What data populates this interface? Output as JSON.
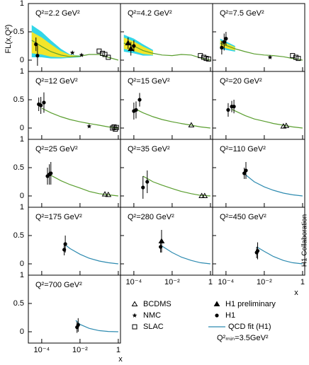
{
  "axes": {
    "ylabel": "FL(x,Q²)",
    "xlabel": "x",
    "xlim": [
      2e-05,
      1.3
    ],
    "ylim": [
      -0.2,
      1
    ],
    "log_x": true,
    "xticks": [
      {
        "value": 0.0001,
        "label": "10⁻⁴"
      },
      {
        "value": 0.01,
        "label": "10⁻²"
      },
      1
    ],
    "yticks": [
      0,
      0.5,
      1
    ]
  },
  "collaboration": "H1 Collaboration",
  "legend": {
    "entries": [
      {
        "name": "BCDMS",
        "marker": "open-triangle"
      },
      {
        "name": "NMC",
        "marker": "star"
      },
      {
        "name": "SLAC",
        "marker": "square"
      },
      {
        "name": "H1 preliminary",
        "marker": "triangle"
      },
      {
        "name": "H1",
        "marker": "circle"
      },
      {
        "name": "QCD fit (H1)",
        "marker": "line"
      }
    ],
    "fit_note": "Q²ₘᵢₙ=3.5GeV²"
  },
  "chart_data": [
    {
      "type": "scatter",
      "title": "Q²=2.2 GeV²",
      "bands": [
        {
          "color": "#33d6e8",
          "x": [
            3e-05,
            0.0001,
            0.0003,
            0.001,
            0.003,
            0.01
          ],
          "upper": [
            0.62,
            0.5,
            0.35,
            0.2,
            0.1,
            0.08
          ],
          "lower": [
            0.05,
            0.05,
            0.03,
            0.03,
            0.04,
            0.05
          ]
        },
        {
          "color": "#f2e52a",
          "x": [
            3e-05,
            0.0001,
            0.0003,
            0.001,
            0.003,
            0.01
          ],
          "upper": [
            0.5,
            0.4,
            0.28,
            0.16,
            0.09,
            0.075
          ],
          "lower": [
            0.12,
            0.1,
            0.06,
            0.05,
            0.05,
            0.06
          ]
        }
      ],
      "fit": {
        "color": "#5a9e2f",
        "x": [
          3e-05,
          0.0001,
          0.0003,
          0.001,
          0.003,
          0.01,
          0.03,
          0.1,
          0.3,
          1
        ],
        "values": [
          0.35,
          0.24,
          0.15,
          0.09,
          0.06,
          0.07,
          0.1,
          0.1,
          0.05,
          0
        ]
      },
      "series": [
        {
          "name": "H1",
          "marker": "circle",
          "x": [
            5e-05,
            6e-05
          ],
          "values": [
            0.28,
            0.08
          ],
          "errors": [
            0.12,
            0.18
          ]
        },
        {
          "name": "NMC",
          "marker": "star",
          "x": [
            0.004,
            0.012
          ],
          "values": [
            0.13,
            0.09
          ]
        },
        {
          "name": "SLAC",
          "marker": "square",
          "x": [
            0.1,
            0.15,
            0.2,
            0.3
          ],
          "values": [
            0.16,
            0.12,
            0.1,
            0.05
          ]
        }
      ]
    },
    {
      "type": "scatter",
      "title": "Q²=4.2 GeV²",
      "bands": [
        {
          "color": "#33d6e8",
          "x": [
            3e-05,
            0.0001,
            0.0003,
            0.001
          ],
          "upper": [
            0.45,
            0.38,
            0.28,
            0.18
          ],
          "lower": [
            0.15,
            0.12,
            0.08,
            0.08
          ]
        },
        {
          "color": "#f2e52a",
          "x": [
            3e-05,
            0.0001,
            0.0003,
            0.001
          ],
          "upper": [
            0.4,
            0.33,
            0.24,
            0.16
          ],
          "lower": [
            0.2,
            0.16,
            0.11,
            0.09
          ]
        }
      ],
      "fit": {
        "color": "#5a9e2f",
        "x": [
          3e-05,
          0.0001,
          0.0003,
          0.001,
          0.003,
          0.01,
          0.03,
          0.1,
          0.3,
          1
        ],
        "values": [
          0.3,
          0.25,
          0.17,
          0.12,
          0.09,
          0.08,
          0.1,
          0.09,
          0.04,
          0
        ]
      },
      "series": [
        {
          "name": "H1 preliminary",
          "marker": "triangle",
          "x": [
            5e-05,
            7e-05
          ],
          "values": [
            0.3,
            0.2
          ],
          "errors": [
            0.1,
            0.12
          ]
        },
        {
          "name": "H1",
          "marker": "circle",
          "x": [
            0.0001
          ],
          "values": [
            0.25
          ],
          "errors": [
            0.1
          ]
        },
        {
          "name": "SLAC",
          "marker": "square",
          "x": [
            0.3,
            0.45,
            0.6,
            0.8
          ],
          "values": [
            0.08,
            0.05,
            0.03,
            0.02
          ]
        }
      ]
    },
    {
      "type": "scatter",
      "title": "Q²=7.5 GeV²",
      "bands": [
        {
          "color": "#33d6e8",
          "x": [
            5e-05,
            0.0001,
            0.0003
          ],
          "upper": [
            0.38,
            0.33,
            0.25
          ],
          "lower": [
            0.2,
            0.18,
            0.15
          ]
        },
        {
          "color": "#f2e52a",
          "x": [
            5e-05,
            0.0001,
            0.0003
          ],
          "upper": [
            0.35,
            0.3,
            0.23
          ],
          "lower": [
            0.23,
            0.21,
            0.17
          ]
        }
      ],
      "fit": {
        "color": "#5a9e2f",
        "x": [
          5e-05,
          0.0001,
          0.0003,
          0.001,
          0.003,
          0.01,
          0.03,
          0.1,
          0.3,
          1
        ],
        "values": [
          0.3,
          0.26,
          0.2,
          0.15,
          0.11,
          0.09,
          0.08,
          0.06,
          0.03,
          0
        ]
      },
      "series": [
        {
          "name": "H1",
          "marker": "circle",
          "x": [
            6e-05,
            8e-05,
            0.0001
          ],
          "values": [
            0.22,
            0.32,
            0.38
          ],
          "errors": [
            0.12,
            0.15,
            0.12
          ]
        },
        {
          "name": "NMC",
          "marker": "star",
          "x": [
            0.02
          ],
          "values": [
            0.05
          ]
        },
        {
          "name": "SLAC",
          "marker": "square",
          "x": [
            0.3,
            0.45,
            0.6
          ],
          "values": [
            0.08,
            0.05,
            0.03
          ]
        }
      ]
    },
    {
      "type": "scatter",
      "title": "Q²=12 GeV²",
      "fit": {
        "color": "#5a9e2f",
        "x": [
          0.0001,
          0.0003,
          0.001,
          0.003,
          0.01,
          0.03,
          0.1,
          0.3,
          1
        ],
        "values": [
          0.35,
          0.27,
          0.2,
          0.15,
          0.11,
          0.08,
          0.05,
          0.02,
          0
        ]
      },
      "series": [
        {
          "name": "H1",
          "marker": "circle",
          "x": [
            7e-05,
            9e-05,
            0.00013
          ],
          "values": [
            0.42,
            0.4,
            0.45
          ],
          "errors": [
            0.12,
            0.15,
            0.18
          ]
        },
        {
          "name": "NMC",
          "marker": "star",
          "x": [
            0.03
          ],
          "values": [
            0.03
          ]
        },
        {
          "name": "SLAC",
          "marker": "square",
          "x": [
            0.5,
            0.6,
            0.7,
            0.8
          ],
          "values": [
            0,
            0.02,
            -0.02,
            0.01
          ]
        }
      ]
    },
    {
      "type": "scatter",
      "title": "Q²=15 GeV²",
      "fit": {
        "color": "#5a9e2f",
        "x": [
          0.00013,
          0.0003,
          0.001,
          0.003,
          0.01,
          0.03,
          0.1,
          0.3,
          1
        ],
        "values": [
          0.33,
          0.27,
          0.2,
          0.15,
          0.11,
          0.08,
          0.05,
          0.02,
          0
        ]
      },
      "series": [
        {
          "name": "H1",
          "marker": "circle",
          "x": [
            0.0001,
            0.00013,
            0.0002
          ],
          "values": [
            0.3,
            0.32,
            0.5
          ],
          "errors": [
            0.15,
            0.15,
            0.12
          ]
        },
        {
          "name": "BCDMS",
          "marker": "open-triangle",
          "x": [
            0.1
          ],
          "values": [
            0.05
          ]
        }
      ]
    },
    {
      "type": "scatter",
      "title": "Q²=20 GeV²",
      "fit": {
        "color": "#5a9e2f",
        "x": [
          0.0002,
          0.001,
          0.003,
          0.01,
          0.03,
          0.1,
          0.3,
          1
        ],
        "values": [
          0.33,
          0.22,
          0.16,
          0.12,
          0.08,
          0.05,
          0.02,
          0
        ]
      },
      "series": [
        {
          "name": "H1",
          "marker": "circle",
          "x": [
            0.00013,
            0.0002,
            0.00026
          ],
          "values": [
            0.32,
            0.38,
            0.38
          ],
          "errors": [
            0.12,
            0.1,
            0.12
          ]
        },
        {
          "name": "BCDMS",
          "marker": "open-triangle",
          "x": [
            0.1,
            0.14
          ],
          "values": [
            0.03,
            0.04
          ]
        }
      ]
    },
    {
      "type": "scatter",
      "title": "Q²=25 GeV²",
      "fit": {
        "color": "#5a9e2f",
        "x": [
          0.00025,
          0.001,
          0.003,
          0.01,
          0.03,
          0.1,
          0.3,
          1
        ],
        "values": [
          0.38,
          0.27,
          0.2,
          0.14,
          0.08,
          0.04,
          0.02,
          0
        ]
      },
      "series": [
        {
          "name": "H1",
          "marker": "circle",
          "x": [
            0.0002,
            0.00025,
            0.0003
          ],
          "values": [
            0.35,
            0.38,
            0.4
          ],
          "errors": [
            0.15,
            0.18,
            0.2
          ]
        },
        {
          "name": "BCDMS",
          "marker": "open-triangle",
          "x": [
            0.2,
            0.3
          ],
          "values": [
            0.03,
            0.02
          ]
        }
      ]
    },
    {
      "type": "scatter",
      "title": "Q²=35 GeV²",
      "fit": {
        "color": "#5a9e2f",
        "x": [
          0.0003,
          0.001,
          0.003,
          0.01,
          0.03,
          0.1,
          0.3,
          1
        ],
        "values": [
          0.35,
          0.25,
          0.19,
          0.13,
          0.08,
          0.04,
          0.01,
          0
        ]
      },
      "series": [
        {
          "name": "H1",
          "marker": "circle",
          "x": [
            0.0003,
            0.0005
          ],
          "values": [
            0.15,
            0.25
          ],
          "errors": [
            0.2,
            0.2
          ]
        },
        {
          "name": "BCDMS",
          "marker": "open-triangle",
          "x": [
            0.35,
            0.5
          ],
          "values": [
            0,
            0
          ]
        }
      ]
    },
    {
      "type": "scatter",
      "title": "Q²=110 GeV²",
      "fit": {
        "color": "#2e8bb0",
        "x": [
          0.001,
          0.003,
          0.01,
          0.03,
          0.1,
          0.3,
          1
        ],
        "values": [
          0.38,
          0.25,
          0.16,
          0.1,
          0.05,
          0.02,
          0
        ]
      },
      "series": [
        {
          "name": "H1",
          "marker": "circle",
          "x": [
            0.0009,
            0.0011
          ],
          "values": [
            0.4,
            0.45
          ],
          "errors": [
            0.1,
            0.15
          ]
        }
      ]
    },
    {
      "type": "scatter",
      "title": "Q²=175 GeV²",
      "fit": {
        "color": "#2e8bb0",
        "x": [
          0.0015,
          0.003,
          0.01,
          0.03,
          0.1,
          0.3,
          1
        ],
        "values": [
          0.35,
          0.27,
          0.17,
          0.1,
          0.05,
          0.02,
          0
        ]
      },
      "series": [
        {
          "name": "H1",
          "marker": "circle",
          "x": [
            0.0015,
            0.0017
          ],
          "values": [
            0.25,
            0.35
          ],
          "errors": [
            0.1,
            0.15
          ]
        }
      ]
    },
    {
      "type": "scatter",
      "title": "Q²=280 GeV²",
      "fit": {
        "color": "#2e8bb0",
        "x": [
          0.0025,
          0.01,
          0.03,
          0.1,
          0.3,
          1
        ],
        "values": [
          0.33,
          0.2,
          0.12,
          0.06,
          0.02,
          0
        ]
      },
      "series": [
        {
          "name": "H1 preliminary",
          "marker": "triangle",
          "x": [
            0.0028
          ],
          "values": [
            0.4
          ],
          "errors": [
            0.2
          ]
        },
        {
          "name": "H1",
          "marker": "circle",
          "x": [
            0.0025
          ],
          "values": [
            0.3
          ],
          "errors": [
            0.1
          ]
        }
      ]
    },
    {
      "type": "scatter",
      "title": "Q²=450 GeV²",
      "fit": {
        "color": "#2e8bb0",
        "x": [
          0.004,
          0.01,
          0.03,
          0.1,
          0.3,
          1
        ],
        "values": [
          0.3,
          0.22,
          0.13,
          0.06,
          0.02,
          0
        ]
      },
      "series": [
        {
          "name": "H1",
          "marker": "circle",
          "x": [
            0.004,
            0.0045
          ],
          "values": [
            0.2,
            0.23
          ],
          "errors": [
            0.1,
            0.15
          ]
        }
      ]
    },
    {
      "type": "scatter",
      "title": "Q²=700 GeV²",
      "fit": {
        "color": "#2e8bb0",
        "x": [
          0.006,
          0.01,
          0.03,
          0.1,
          0.3,
          1
        ],
        "values": [
          0.2,
          0.13,
          0.06,
          0.02,
          0.005,
          0
        ]
      },
      "series": [
        {
          "name": "H1",
          "marker": "circle",
          "x": [
            0.007,
            0.008
          ],
          "values": [
            0.08,
            0.12
          ],
          "errors": [
            0.1,
            0.12
          ]
        }
      ]
    }
  ]
}
